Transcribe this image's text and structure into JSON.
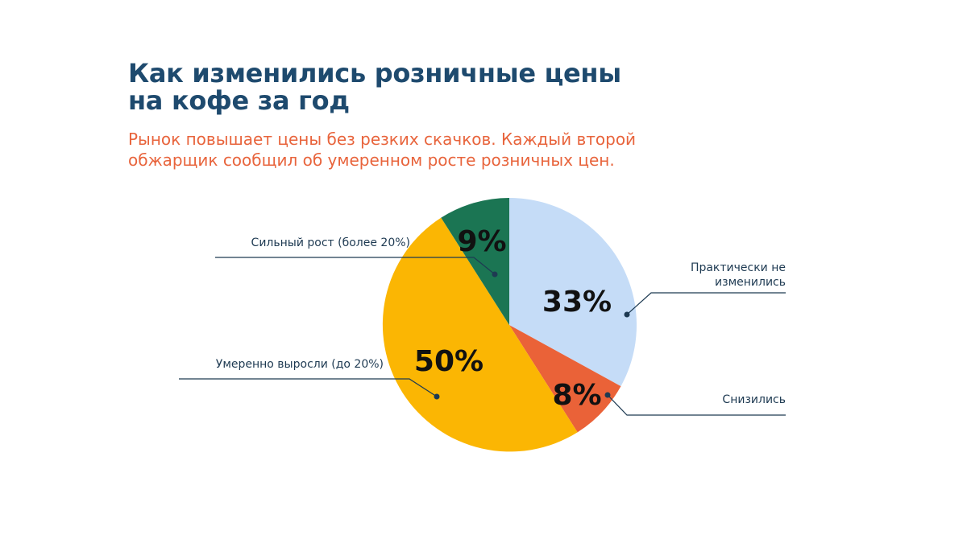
{
  "title_lines": [
    "Как изменились розничные цены",
    "на кофе за год"
  ],
  "subtitle_lines": [
    "Рынок повышает цены без резких скачков. Каждый второй",
    "обжарщик сообщил об умеренном росте розничных цен."
  ],
  "colors": {
    "title": "#1e4a6e",
    "subtitle": "#e8643c",
    "leader": "#1e3a52"
  },
  "chart_data": {
    "type": "pie",
    "unit": "%",
    "slices": [
      {
        "label": [
          "Практически не",
          "изменились"
        ],
        "value": 33,
        "display": "33%",
        "color": "#c5dcf7"
      },
      {
        "label": [
          "Снизились"
        ],
        "value": 8,
        "display": "8%",
        "color": "#ea6238"
      },
      {
        "label": [
          "Умеренно выросли (до 20%)"
        ],
        "value": 50,
        "display": "50%",
        "color": "#fbb603"
      },
      {
        "label": [
          "Сильный рост (более 20%)"
        ],
        "value": 9,
        "display": "9%",
        "color": "#1b7553"
      }
    ]
  }
}
